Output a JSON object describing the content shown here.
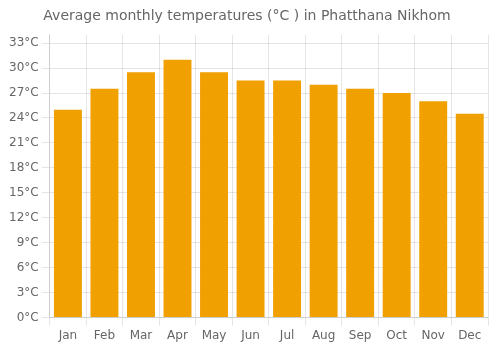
{
  "chart_data": {
    "type": "bar",
    "title": "Average monthly temperatures (°C ) in Phatthana Nikhom",
    "categories": [
      "Jan",
      "Feb",
      "Mar",
      "Apr",
      "May",
      "Jun",
      "Jul",
      "Aug",
      "Sep",
      "Oct",
      "Nov",
      "Dec"
    ],
    "values": [
      25.0,
      27.5,
      29.5,
      31.0,
      29.5,
      28.5,
      28.5,
      28.0,
      27.5,
      27.0,
      26.0,
      24.5
    ],
    "color": "#F0A000",
    "ylim": [
      0,
      34
    ],
    "yticks": [
      {
        "value": 0,
        "label": "0°C"
      },
      {
        "value": 3,
        "label": "3°C"
      },
      {
        "value": 6,
        "label": "6°C"
      },
      {
        "value": 9,
        "label": "9°C"
      },
      {
        "value": 12,
        "label": "12°C"
      },
      {
        "value": 15,
        "label": "15°C"
      },
      {
        "value": 18,
        "label": "18°C"
      },
      {
        "value": 21,
        "label": "21°C"
      },
      {
        "value": 24,
        "label": "24°C"
      },
      {
        "value": 27,
        "label": "27°C"
      },
      {
        "value": 30,
        "label": "30°C"
      },
      {
        "value": 33,
        "label": "33°C"
      }
    ],
    "grid": true
  }
}
